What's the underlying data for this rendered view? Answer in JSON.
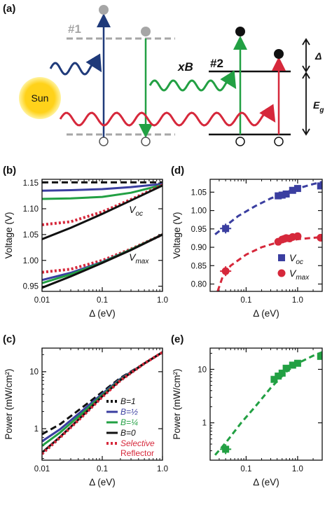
{
  "colors": {
    "navy": "#1f3a7a",
    "blue": "#3a3ea0",
    "green": "#22a043",
    "red": "#d6283b",
    "black": "#111111",
    "gray": "#a6a6a6",
    "sun": "#ffd21a"
  },
  "schematic": {
    "label": "(a)",
    "level1_label": "#1",
    "level2_label": "#2",
    "xb_label": "xB",
    "sun_label": "Sun",
    "delta_label": "Δ",
    "eg_label": "E",
    "eg_sub": "g"
  },
  "chart_data": [
    {
      "id": "b",
      "panel_label": "(b)",
      "type": "line",
      "xscale": "log",
      "xlim": [
        0.01,
        1.0
      ],
      "ylim": [
        0.94,
        1.157
      ],
      "xlabel": "Δ (eV)",
      "ylabel": "Voltage (V)",
      "x_ticks": [
        {
          "v": 0.01,
          "label": "0.01"
        },
        {
          "v": 0.1,
          "label": "0.1"
        },
        {
          "v": 1.0,
          "label": "1.0"
        }
      ],
      "y_ticks": [
        {
          "v": 0.95,
          "label": "0.95"
        },
        {
          "v": 1.0,
          "label": "1.00"
        },
        {
          "v": 1.05,
          "label": "1.05"
        },
        {
          "v": 1.1,
          "label": "1.10"
        },
        {
          "v": 1.15,
          "label": "1.15"
        }
      ],
      "annotations": [
        {
          "text": "V",
          "sub": "oc",
          "x": 0.5,
          "y": 1.092
        },
        {
          "text": "V",
          "sub": "max",
          "x": 0.5,
          "y": 1.0
        }
      ],
      "series": [
        {
          "color": "black",
          "dash": "dashed",
          "points": [
            [
              0.01,
              1.151
            ],
            [
              0.03,
              1.151
            ],
            [
              0.1,
              1.151
            ],
            [
              0.3,
              1.151
            ],
            [
              1.0,
              1.151
            ]
          ]
        },
        {
          "color": "blue",
          "dash": "solid",
          "points": [
            [
              0.01,
              1.135
            ],
            [
              0.03,
              1.136
            ],
            [
              0.1,
              1.138
            ],
            [
              0.3,
              1.142
            ],
            [
              1.0,
              1.148
            ]
          ]
        },
        {
          "color": "green",
          "dash": "solid",
          "points": [
            [
              0.01,
              1.119
            ],
            [
              0.03,
              1.12
            ],
            [
              0.1,
              1.123
            ],
            [
              0.3,
              1.131
            ],
            [
              1.0,
              1.146
            ]
          ]
        },
        {
          "color": "red",
          "dash": "dotted",
          "points": [
            [
              0.01,
              1.069
            ],
            [
              0.03,
              1.075
            ],
            [
              0.1,
              1.094
            ],
            [
              0.3,
              1.118
            ],
            [
              1.0,
              1.146
            ]
          ]
        },
        {
          "color": "black",
          "dash": "solid",
          "points": [
            [
              0.01,
              1.041
            ],
            [
              0.03,
              1.063
            ],
            [
              0.1,
              1.09
            ],
            [
              0.3,
              1.116
            ],
            [
              1.0,
              1.145
            ]
          ]
        },
        {
          "color": "red",
          "dash": "dotted",
          "points": [
            [
              0.01,
              0.977
            ],
            [
              0.03,
              0.983
            ],
            [
              0.1,
              1.0
            ],
            [
              0.3,
              1.022
            ],
            [
              1.0,
              1.05
            ]
          ]
        },
        {
          "color": "blue",
          "dash": "solid",
          "points": [
            [
              0.01,
              0.962
            ],
            [
              0.03,
              0.976
            ],
            [
              0.1,
              0.997
            ],
            [
              0.3,
              1.021
            ],
            [
              1.0,
              1.05
            ]
          ]
        },
        {
          "color": "green",
          "dash": "solid",
          "points": [
            [
              0.01,
              0.956
            ],
            [
              0.03,
              0.973
            ],
            [
              0.1,
              0.996
            ],
            [
              0.3,
              1.021
            ],
            [
              1.0,
              1.05
            ]
          ]
        },
        {
          "color": "black",
          "dash": "solid",
          "points": [
            [
              0.01,
              0.947
            ],
            [
              0.03,
              0.969
            ],
            [
              0.1,
              0.995
            ],
            [
              0.3,
              1.02
            ],
            [
              1.0,
              1.05
            ]
          ]
        }
      ]
    },
    {
      "id": "d",
      "panel_label": "(d)",
      "type": "scatter",
      "xscale": "log",
      "xlim": [
        0.02,
        3.0
      ],
      "ylim": [
        0.78,
        1.085
      ],
      "xlabel": "Δ (eV)",
      "ylabel": "Voltage (V)",
      "x_ticks": [
        {
          "v": 0.1,
          "label": "0.1"
        },
        {
          "v": 1.0,
          "label": "1.0"
        }
      ],
      "y_ticks": [
        {
          "v": 0.8,
          "label": "0.80"
        },
        {
          "v": 0.85,
          "label": "0.85"
        },
        {
          "v": 0.9,
          "label": "0.90"
        },
        {
          "v": 0.95,
          "label": "0.95"
        },
        {
          "v": 1.0,
          "label": "1.00"
        },
        {
          "v": 1.05,
          "label": "1.05"
        }
      ],
      "legend": [
        {
          "text": "V",
          "sub": "oc",
          "color": "blue",
          "marker": "square"
        },
        {
          "text": "V",
          "sub": "max",
          "color": "red",
          "marker": "circle"
        }
      ],
      "legend_position": "bottom-right",
      "series": [
        {
          "color": "blue",
          "marker": "square",
          "fit": [
            [
              0.025,
              0.935
            ],
            [
              0.04,
              0.958
            ],
            [
              0.07,
              0.985
            ],
            [
              0.15,
              1.012
            ],
            [
              0.3,
              1.033
            ],
            [
              0.6,
              1.05
            ],
            [
              1.0,
              1.06
            ],
            [
              2.0,
              1.072
            ],
            [
              3.0,
              1.078
            ]
          ],
          "points": [
            [
              0.04,
              0.951
            ],
            [
              0.42,
              1.04
            ],
            [
              0.5,
              1.042
            ],
            [
              0.6,
              1.045
            ],
            [
              0.8,
              1.055
            ],
            [
              1.0,
              1.06
            ],
            [
              2.8,
              1.067
            ]
          ]
        },
        {
          "color": "red",
          "marker": "circle",
          "fit": [
            [
              0.028,
              0.78
            ],
            [
              0.035,
              0.82
            ],
            [
              0.05,
              0.85
            ],
            [
              0.1,
              0.88
            ],
            [
              0.2,
              0.9
            ],
            [
              0.4,
              0.913
            ],
            [
              1.0,
              0.922
            ],
            [
              3.0,
              0.928
            ]
          ],
          "points": [
            [
              0.04,
              0.835
            ],
            [
              0.42,
              0.915
            ],
            [
              0.5,
              0.921
            ],
            [
              0.55,
              0.923
            ],
            [
              0.6,
              0.925
            ],
            [
              0.7,
              0.924
            ],
            [
              0.8,
              0.928
            ],
            [
              1.0,
              0.93
            ],
            [
              2.8,
              0.926
            ]
          ]
        }
      ]
    },
    {
      "id": "c",
      "panel_label": "(c)",
      "type": "line",
      "xscale": "log",
      "yscale": "log",
      "xlim": [
        0.01,
        1.0
      ],
      "ylim": [
        0.28,
        26
      ],
      "xlabel": "Δ (eV)",
      "ylabel": "Power (mW/cm²)",
      "x_ticks": [
        {
          "v": 0.01,
          "label": "0.01"
        },
        {
          "v": 0.1,
          "label": "0.1"
        },
        {
          "v": 1.0,
          "label": "1.0"
        }
      ],
      "y_ticks": [
        {
          "v": 1,
          "label": "1"
        },
        {
          "v": 10,
          "label": "10"
        }
      ],
      "legend": [
        {
          "text": "B=1",
          "color": "black",
          "dash": "dotted"
        },
        {
          "text": "B=½",
          "color": "blue",
          "dash": "solid"
        },
        {
          "text": "B=¼",
          "color": "green",
          "dash": "solid"
        },
        {
          "text": "B=0",
          "color": "black",
          "dash": "solid"
        },
        {
          "text": "Selective",
          "text2": "Reflector",
          "color": "red",
          "dash": "dotted"
        }
      ],
      "legend_position": "bottom-right",
      "series": [
        {
          "color": "black",
          "dash": "dashed",
          "points": [
            [
              0.01,
              0.8
            ],
            [
              0.02,
              1.2
            ],
            [
              0.05,
              2.5
            ],
            [
              0.1,
              4.4
            ],
            [
              0.2,
              7.8
            ],
            [
              0.5,
              14
            ],
            [
              1.0,
              22
            ]
          ]
        },
        {
          "color": "blue",
          "dash": "solid",
          "points": [
            [
              0.01,
              0.6
            ],
            [
              0.02,
              0.98
            ],
            [
              0.05,
              2.2
            ],
            [
              0.1,
              4.1
            ],
            [
              0.2,
              7.5
            ],
            [
              0.5,
              14
            ],
            [
              1.0,
              22
            ]
          ]
        },
        {
          "color": "green",
          "dash": "solid",
          "points": [
            [
              0.01,
              0.5
            ],
            [
              0.02,
              0.86
            ],
            [
              0.05,
              2.0
            ],
            [
              0.1,
              3.9
            ],
            [
              0.2,
              7.3
            ],
            [
              0.5,
              14
            ],
            [
              1.0,
              22
            ]
          ]
        },
        {
          "color": "black",
          "dash": "solid",
          "points": [
            [
              0.01,
              0.38
            ],
            [
              0.02,
              0.72
            ],
            [
              0.05,
              1.8
            ],
            [
              0.1,
              3.7
            ],
            [
              0.2,
              7.1
            ],
            [
              0.5,
              14
            ],
            [
              1.0,
              22
            ]
          ]
        },
        {
          "color": "red",
          "dash": "dotted",
          "points": [
            [
              0.01,
              0.36
            ],
            [
              0.02,
              0.7
            ],
            [
              0.05,
              1.75
            ],
            [
              0.1,
              3.6
            ],
            [
              0.2,
              7.0
            ],
            [
              0.5,
              14
            ],
            [
              1.0,
              22
            ]
          ]
        }
      ]
    },
    {
      "id": "e",
      "panel_label": "(e)",
      "type": "scatter",
      "xscale": "log",
      "yscale": "log",
      "xlim": [
        0.02,
        3.0
      ],
      "ylim": [
        0.2,
        25
      ],
      "xlabel": "Δ (eV)",
      "ylabel": "Power (mW/cm²)",
      "x_ticks": [
        {
          "v": 0.1,
          "label": "0.1"
        },
        {
          "v": 1.0,
          "label": "1.0"
        }
      ],
      "y_ticks": [
        {
          "v": 1,
          "label": "1"
        },
        {
          "v": 10,
          "label": "10"
        }
      ],
      "series": [
        {
          "color": "green",
          "marker": "square",
          "fit": [
            [
              0.025,
              0.25
            ],
            [
              0.04,
              0.42
            ],
            [
              0.08,
              1.0
            ],
            [
              0.15,
              2.0
            ],
            [
              0.3,
              4.5
            ],
            [
              0.6,
              9.0
            ],
            [
              1.0,
              13
            ],
            [
              2.0,
              18
            ],
            [
              3.0,
              21
            ]
          ],
          "points": [
            [
              0.04,
              0.32
            ],
            [
              0.35,
              6.5
            ],
            [
              0.42,
              7.5
            ],
            [
              0.5,
              8.5
            ],
            [
              0.6,
              10.5
            ],
            [
              0.8,
              12
            ],
            [
              1.0,
              13
            ],
            [
              2.8,
              17.5
            ]
          ]
        }
      ]
    }
  ]
}
